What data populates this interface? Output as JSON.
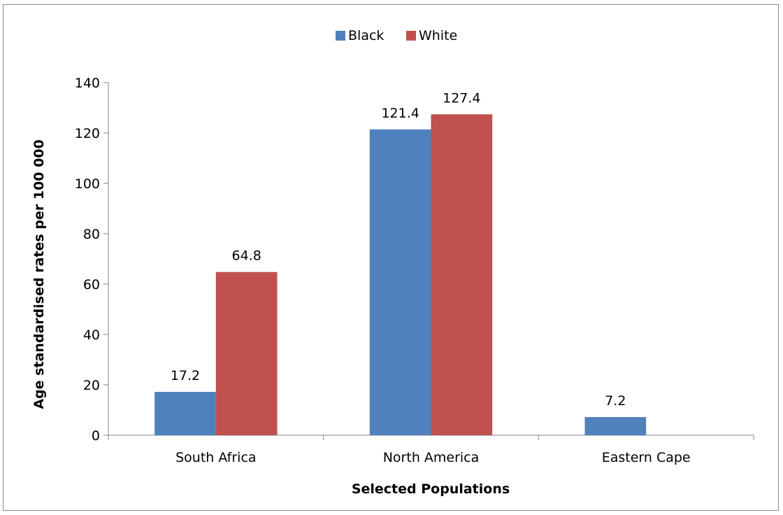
{
  "chart_data": {
    "type": "bar",
    "title": "",
    "xlabel": "Selected Populations",
    "ylabel": "Age standardised rates per 100 000",
    "categories": [
      "South Africa",
      "North America",
      "Eastern Cape"
    ],
    "series": [
      {
        "name": "Black",
        "color": "#4f81bd",
        "values": [
          17.2,
          121.4,
          7.2
        ],
        "labels": [
          "17.2",
          "121.4",
          "7.2"
        ]
      },
      {
        "name": "White",
        "color": "#c0504d",
        "values": [
          64.8,
          127.4,
          null
        ],
        "labels": [
          "64.8",
          "127.4",
          ""
        ]
      }
    ],
    "ylim": [
      0,
      140
    ],
    "yticks": [
      0,
      20,
      40,
      60,
      80,
      100,
      120,
      140
    ],
    "ytick_labels": [
      "0",
      "20",
      "40",
      "60",
      "80",
      "100",
      "120",
      "140"
    ],
    "grid": false,
    "legend_position": "top-center"
  }
}
